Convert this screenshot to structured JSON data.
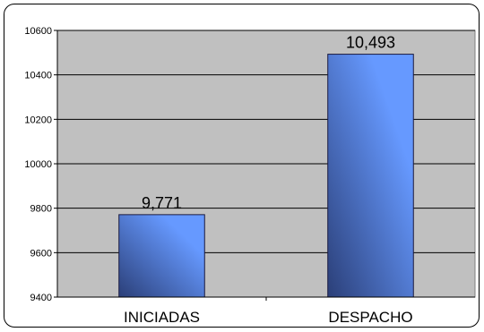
{
  "chart_data": {
    "type": "bar",
    "categories": [
      "INICIADAS",
      "DESPACHO"
    ],
    "values": [
      9771,
      10493
    ],
    "data_labels": [
      "9,771",
      "10,493"
    ],
    "y_ticks": [
      9400,
      9600,
      9800,
      10000,
      10200,
      10400,
      10600
    ],
    "ylim": [
      9400,
      10600
    ],
    "grid": true,
    "legend": false,
    "title": "",
    "xlabel": "",
    "ylabel": "",
    "colors": {
      "plot_background": "#c0c0c0",
      "bar_light": "#6699ff",
      "bar_dark": "#2b3f78",
      "gridline": "#000000"
    }
  }
}
